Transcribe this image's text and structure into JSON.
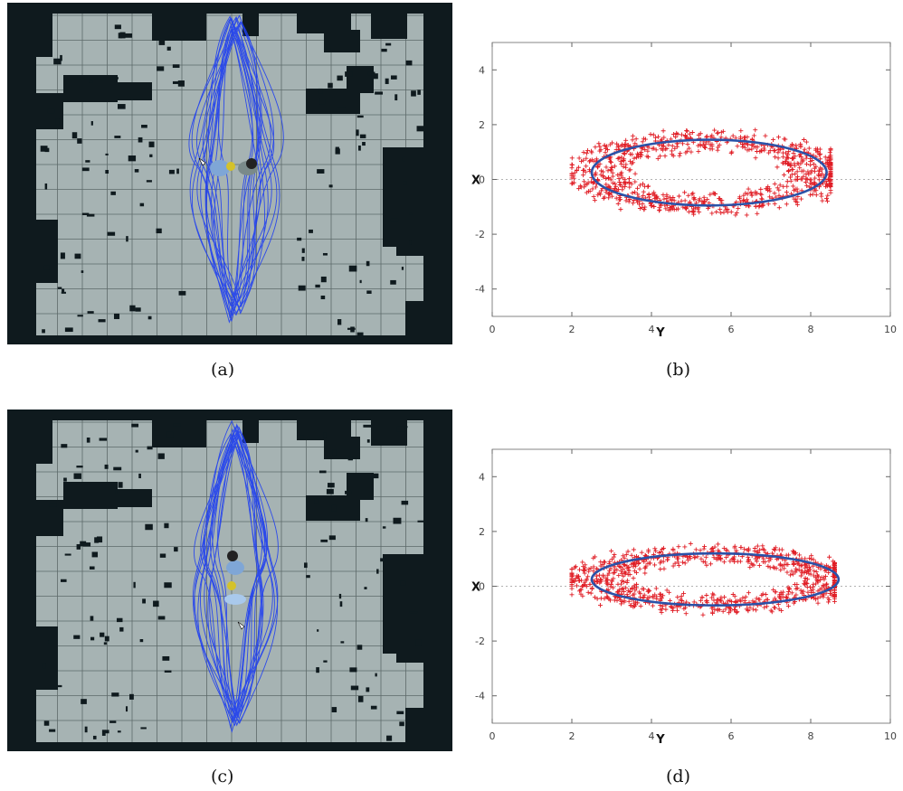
{
  "panels": [
    {
      "label": "(a)"
    },
    {
      "label": "(b)"
    },
    {
      "label": "(c)"
    },
    {
      "label": "(d)"
    }
  ],
  "colors": {
    "map_floor": "#a6b3b3",
    "map_wall": "#0f1a1e",
    "trajectory": "#1f3ff0",
    "scatter": "#e01c24",
    "ellipse": "#2a52a8"
  },
  "chart_data": [
    {
      "id": "b",
      "type": "scatter",
      "title": "",
      "xlabel": "Y",
      "ylabel": "X",
      "xlim": [
        0,
        10
      ],
      "ylim": [
        -5,
        5
      ],
      "xticks": [
        "0",
        "2",
        "4",
        "6",
        "8",
        "10"
      ],
      "yticks": [
        "4",
        "2",
        "0",
        "-2",
        "-4"
      ],
      "grid": false,
      "zero_line": true,
      "point_marker": "+",
      "ellipse": {
        "cx": 5.45,
        "cy": 0.25,
        "rx": 2.95,
        "ry": 1.2
      },
      "point_cloud": {
        "x_range": [
          2.0,
          8.5
        ],
        "y_range": [
          -1.3,
          2.3
        ],
        "count": 900
      }
    },
    {
      "id": "d",
      "type": "scatter",
      "title": "",
      "xlabel": "Y",
      "ylabel": "X",
      "xlim": [
        0,
        10
      ],
      "ylim": [
        -5,
        5
      ],
      "xticks": [
        "0",
        "2",
        "4",
        "6",
        "8",
        "10"
      ],
      "yticks": [
        "4",
        "2",
        "0",
        "-2",
        "-4"
      ],
      "grid": false,
      "zero_line": true,
      "point_marker": "+",
      "ellipse": {
        "cx": 5.6,
        "cy": 0.25,
        "rx": 3.1,
        "ry": 0.95
      },
      "point_cloud": {
        "x_range": [
          2.0,
          8.6
        ],
        "y_range": [
          -1.2,
          1.8
        ],
        "count": 900
      }
    }
  ]
}
